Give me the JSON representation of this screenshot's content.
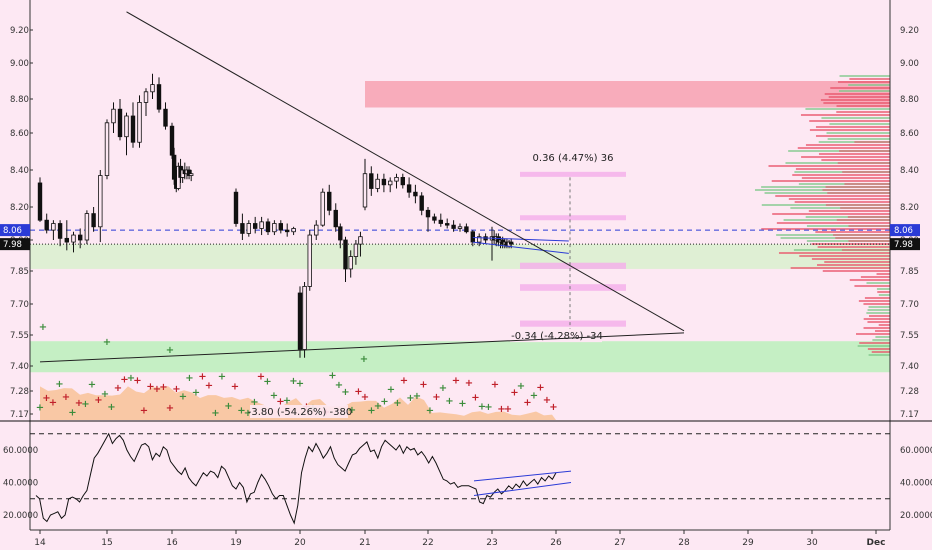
{
  "chart_data": [
    {
      "type": "candlestick",
      "x_ticks": [
        "14",
        "15",
        "16",
        "19",
        "20",
        "21",
        "22",
        "23",
        "26",
        "27",
        "28",
        "29",
        "30",
        "Dec"
      ],
      "y_ticks": [
        "9.20",
        "9.00",
        "8.80",
        "8.60",
        "8.40",
        "8.20",
        "8.00",
        "7.85",
        "7.70",
        "7.55",
        "7.40",
        "7.28",
        "7.17"
      ],
      "price_markers": [
        {
          "label": "8.06",
          "value": 8.06,
          "color": "#2b3bd6"
        },
        {
          "label": "7.98",
          "value": 7.98,
          "color": "#111111"
        }
      ],
      "candles": [
        {
          "x": 14.0,
          "o": 8.33,
          "h": 8.36,
          "l": 8.11,
          "c": 8.12
        },
        {
          "x": 14.1,
          "o": 8.12,
          "h": 8.16,
          "l": 8.04,
          "c": 8.06
        },
        {
          "x": 14.2,
          "o": 8.06,
          "h": 8.12,
          "l": 8.0,
          "c": 8.1
        },
        {
          "x": 14.3,
          "o": 8.1,
          "h": 8.12,
          "l": 7.97,
          "c": 8.01
        },
        {
          "x": 14.4,
          "o": 8.01,
          "h": 8.12,
          "l": 7.95,
          "c": 7.99
        },
        {
          "x": 14.5,
          "o": 7.99,
          "h": 8.05,
          "l": 7.94,
          "c": 8.03
        },
        {
          "x": 14.6,
          "o": 8.03,
          "h": 8.07,
          "l": 7.96,
          "c": 8.0
        },
        {
          "x": 14.7,
          "o": 8.0,
          "h": 8.18,
          "l": 7.98,
          "c": 8.16
        },
        {
          "x": 14.8,
          "o": 8.16,
          "h": 8.2,
          "l": 8.05,
          "c": 8.08
        },
        {
          "x": 14.9,
          "o": 8.08,
          "h": 8.4,
          "l": 7.99,
          "c": 8.37
        },
        {
          "x": 15.0,
          "o": 8.37,
          "h": 8.68,
          "l": 8.35,
          "c": 8.66
        },
        {
          "x": 15.1,
          "o": 8.66,
          "h": 8.78,
          "l": 8.6,
          "c": 8.74
        },
        {
          "x": 15.2,
          "o": 8.74,
          "h": 8.8,
          "l": 8.56,
          "c": 8.58
        },
        {
          "x": 15.3,
          "o": 8.58,
          "h": 8.72,
          "l": 8.48,
          "c": 8.7
        },
        {
          "x": 15.4,
          "o": 8.7,
          "h": 8.78,
          "l": 8.52,
          "c": 8.55
        },
        {
          "x": 15.5,
          "o": 8.55,
          "h": 8.82,
          "l": 8.52,
          "c": 8.78
        },
        {
          "x": 15.6,
          "o": 8.78,
          "h": 8.86,
          "l": 8.7,
          "c": 8.84
        },
        {
          "x": 15.7,
          "o": 8.84,
          "h": 8.94,
          "l": 8.8,
          "c": 8.88
        },
        {
          "x": 15.8,
          "o": 8.88,
          "h": 8.92,
          "l": 8.72,
          "c": 8.74
        },
        {
          "x": 15.9,
          "o": 8.74,
          "h": 8.78,
          "l": 8.62,
          "c": 8.64
        },
        {
          "x": 16.0,
          "o": 8.64,
          "h": 8.66,
          "l": 8.46,
          "c": 8.48
        },
        {
          "x": 16.1,
          "o": 8.48,
          "h": 8.52,
          "l": 8.32,
          "c": 8.35
        },
        {
          "x": 16.2,
          "o": 8.35,
          "h": 8.4,
          "l": 8.28,
          "c": 8.3
        },
        {
          "x": 16.3,
          "o": 8.3,
          "h": 8.44,
          "l": 8.29,
          "c": 8.42
        },
        {
          "x": 16.4,
          "o": 8.42,
          "h": 8.46,
          "l": 8.33,
          "c": 8.36
        },
        {
          "x": 16.5,
          "o": 8.36,
          "h": 8.42,
          "l": 8.33,
          "c": 8.4
        },
        {
          "x": 16.6,
          "o": 8.4,
          "h": 8.44,
          "l": 8.35,
          "c": 8.38
        },
        {
          "x": 16.7,
          "o": 8.38,
          "h": 8.42,
          "l": 8.35,
          "c": 8.4
        },
        {
          "x": 16.8,
          "o": 8.4,
          "h": 8.42,
          "l": 8.35,
          "c": 8.37
        },
        {
          "x": 16.9,
          "o": 8.37,
          "h": 8.4,
          "l": 8.34,
          "c": 8.38
        },
        {
          "x": 19.0,
          "o": 8.28,
          "h": 8.3,
          "l": 8.08,
          "c": 8.1
        },
        {
          "x": 19.1,
          "o": 8.1,
          "h": 8.16,
          "l": 8.0,
          "c": 8.04
        },
        {
          "x": 19.2,
          "o": 8.04,
          "h": 8.12,
          "l": 8.02,
          "c": 8.1
        },
        {
          "x": 19.3,
          "o": 8.1,
          "h": 8.14,
          "l": 8.04,
          "c": 8.07
        },
        {
          "x": 19.4,
          "o": 8.07,
          "h": 8.14,
          "l": 8.03,
          "c": 8.11
        },
        {
          "x": 19.5,
          "o": 8.11,
          "h": 8.13,
          "l": 8.03,
          "c": 8.05
        },
        {
          "x": 19.6,
          "o": 8.05,
          "h": 8.12,
          "l": 8.03,
          "c": 8.1
        },
        {
          "x": 19.7,
          "o": 8.1,
          "h": 8.12,
          "l": 8.04,
          "c": 8.06
        },
        {
          "x": 19.8,
          "o": 8.06,
          "h": 8.1,
          "l": 8.02,
          "c": 8.05
        },
        {
          "x": 19.9,
          "o": 8.05,
          "h": 8.08,
          "l": 8.03,
          "c": 8.07
        },
        {
          "x": 20.0,
          "o": 7.75,
          "h": 7.78,
          "l": 7.44,
          "c": 7.48
        },
        {
          "x": 20.07,
          "o": 7.48,
          "h": 7.8,
          "l": 7.44,
          "c": 7.78
        },
        {
          "x": 20.15,
          "o": 7.78,
          "h": 8.06,
          "l": 7.76,
          "c": 8.03
        },
        {
          "x": 20.25,
          "o": 8.03,
          "h": 8.12,
          "l": 8.0,
          "c": 8.09
        },
        {
          "x": 20.35,
          "o": 8.09,
          "h": 8.3,
          "l": 8.08,
          "c": 8.28
        },
        {
          "x": 20.45,
          "o": 8.28,
          "h": 8.32,
          "l": 8.15,
          "c": 8.18
        },
        {
          "x": 20.55,
          "o": 8.18,
          "h": 8.22,
          "l": 8.05,
          "c": 8.08
        },
        {
          "x": 20.62,
          "o": 8.08,
          "h": 8.1,
          "l": 7.96,
          "c": 8.0
        },
        {
          "x": 20.7,
          "o": 8.0,
          "h": 8.02,
          "l": 7.8,
          "c": 7.86
        },
        {
          "x": 20.78,
          "o": 7.86,
          "h": 7.95,
          "l": 7.82,
          "c": 7.92
        },
        {
          "x": 20.86,
          "o": 7.92,
          "h": 8.0,
          "l": 7.88,
          "c": 7.98
        },
        {
          "x": 20.93,
          "o": 7.98,
          "h": 8.05,
          "l": 7.92,
          "c": 8.02
        },
        {
          "x": 21.0,
          "o": 8.2,
          "h": 8.46,
          "l": 8.18,
          "c": 8.38
        },
        {
          "x": 21.1,
          "o": 8.38,
          "h": 8.42,
          "l": 8.26,
          "c": 8.3
        },
        {
          "x": 21.2,
          "o": 8.3,
          "h": 8.38,
          "l": 8.28,
          "c": 8.35
        },
        {
          "x": 21.3,
          "o": 8.35,
          "h": 8.38,
          "l": 8.28,
          "c": 8.32
        },
        {
          "x": 21.4,
          "o": 8.32,
          "h": 8.36,
          "l": 8.28,
          "c": 8.34
        },
        {
          "x": 21.5,
          "o": 8.34,
          "h": 8.38,
          "l": 8.3,
          "c": 8.36
        },
        {
          "x": 21.6,
          "o": 8.36,
          "h": 8.38,
          "l": 8.3,
          "c": 8.32
        },
        {
          "x": 21.7,
          "o": 8.32,
          "h": 8.36,
          "l": 8.25,
          "c": 8.28
        },
        {
          "x": 21.8,
          "o": 8.28,
          "h": 8.32,
          "l": 8.22,
          "c": 8.26
        },
        {
          "x": 21.9,
          "o": 8.26,
          "h": 8.28,
          "l": 8.15,
          "c": 8.18
        },
        {
          "x": 22.0,
          "o": 8.18,
          "h": 8.2,
          "l": 8.05,
          "c": 8.14
        },
        {
          "x": 22.1,
          "o": 8.14,
          "h": 8.16,
          "l": 8.1,
          "c": 8.12
        },
        {
          "x": 22.2,
          "o": 8.12,
          "h": 8.16,
          "l": 8.08,
          "c": 8.1
        },
        {
          "x": 22.3,
          "o": 8.1,
          "h": 8.13,
          "l": 8.07,
          "c": 8.09
        },
        {
          "x": 22.4,
          "o": 8.09,
          "h": 8.12,
          "l": 8.05,
          "c": 8.07
        },
        {
          "x": 22.5,
          "o": 8.07,
          "h": 8.1,
          "l": 8.05,
          "c": 8.08
        },
        {
          "x": 22.6,
          "o": 8.08,
          "h": 8.1,
          "l": 8.04,
          "c": 8.05
        },
        {
          "x": 22.7,
          "o": 8.05,
          "h": 8.06,
          "l": 7.97,
          "c": 7.99
        },
        {
          "x": 22.8,
          "o": 7.99,
          "h": 8.04,
          "l": 7.97,
          "c": 8.02
        },
        {
          "x": 22.9,
          "o": 8.02,
          "h": 8.04,
          "l": 7.98,
          "c": 8.0
        },
        {
          "x": 23.0,
          "o": 8.0,
          "h": 8.08,
          "l": 7.9,
          "c": 8.02
        },
        {
          "x": 23.1,
          "o": 8.02,
          "h": 8.06,
          "l": 7.98,
          "c": 8.0
        },
        {
          "x": 23.2,
          "o": 8.0,
          "h": 8.04,
          "l": 7.97,
          "c": 8.02
        },
        {
          "x": 23.3,
          "o": 8.02,
          "h": 8.04,
          "l": 7.97,
          "c": 7.99
        },
        {
          "x": 23.4,
          "o": 7.99,
          "h": 8.02,
          "l": 7.96,
          "c": 8.0
        },
        {
          "x": 23.5,
          "o": 8.0,
          "h": 8.02,
          "l": 7.96,
          "c": 7.98
        },
        {
          "x": 23.6,
          "o": 7.98,
          "h": 8.01,
          "l": 7.96,
          "c": 7.99
        },
        {
          "x": 23.7,
          "o": 7.99,
          "h": 8.01,
          "l": 7.96,
          "c": 7.97
        },
        {
          "x": 23.8,
          "o": 7.97,
          "h": 8.0,
          "l": 7.96,
          "c": 7.99
        },
        {
          "x": 23.9,
          "o": 7.99,
          "h": 8.01,
          "l": 7.96,
          "c": 7.98
        }
      ],
      "horizontal_lines": [
        {
          "value": 8.06,
          "color": "#2b3bd6",
          "style": "dashed"
        },
        {
          "value": 7.98,
          "color": "#222222",
          "style": "dotted"
        }
      ],
      "zones": [
        {
          "from": 8.75,
          "to": 8.9,
          "x_start": 21.0,
          "x_end": "right",
          "color": "#f7a5b5"
        },
        {
          "from": 7.86,
          "to": 7.98,
          "x_start": "left",
          "x_end": "right",
          "color": "#dcefd0"
        },
        {
          "from": 7.37,
          "to": 7.52,
          "x_start": "left",
          "x_end": "right",
          "color": "#bff0bf"
        }
      ],
      "trend_lines": [
        {
          "x1": 15.3,
          "y1": 9.31,
          "x2": 28.0,
          "y2": 7.57
        },
        {
          "x1": 14.0,
          "y1": 7.42,
          "x2": 28.0,
          "y2": 7.56
        }
      ],
      "measure": [
        {
          "label": "0.36 (4.47%) 36",
          "change": 0.36,
          "pct": 4.47,
          "ticks": 36
        },
        {
          "label": "-0.34 (-4.28%) -34",
          "change": -0.34,
          "pct": -4.28,
          "ticks": -34
        },
        {
          "label": "-3.80 (-54.26%) -380",
          "change": -3.8,
          "pct": -54.26,
          "ticks": -380
        }
      ],
      "volume_profile": "right-side histogram, red/green"
    },
    {
      "type": "line",
      "name": "oscillator",
      "y_ticks": [
        "60.0000",
        "40.0000",
        "20.0000"
      ],
      "reference_lines": [
        70,
        30
      ],
      "series": [
        {
          "values": [
            32,
            30,
            18,
            16,
            20,
            21,
            22,
            18,
            20,
            30,
            31,
            30,
            28,
            32,
            35,
            45,
            55,
            58,
            62,
            66,
            70,
            64,
            67,
            69,
            66,
            60,
            56,
            53,
            58,
            63,
            64,
            62,
            54,
            58,
            56,
            62,
            60,
            53,
            50,
            47,
            45,
            49,
            43,
            40,
            38,
            42,
            46,
            44,
            47,
            46,
            43,
            50,
            48,
            43,
            38,
            36,
            40,
            37,
            28,
            33,
            34,
            40,
            45,
            42,
            38,
            33,
            30,
            32,
            32,
            26,
            20,
            15,
            26,
            46,
            55,
            62,
            59,
            64,
            60,
            55,
            58,
            62,
            55,
            51,
            49,
            47,
            52,
            57,
            58,
            61,
            63,
            65,
            59,
            60,
            55,
            62,
            66,
            64,
            62,
            60,
            63,
            58,
            62,
            60,
            61,
            57,
            59,
            56,
            52,
            56,
            52,
            47,
            42,
            41,
            39,
            40,
            37,
            38,
            38,
            38,
            37,
            36,
            28,
            27,
            32,
            31,
            34,
            36,
            33,
            35,
            38,
            36,
            39,
            37,
            41,
            38,
            40,
            42,
            39,
            43,
            41,
            44,
            42,
            46
          ]
        }
      ]
    }
  ]
}
